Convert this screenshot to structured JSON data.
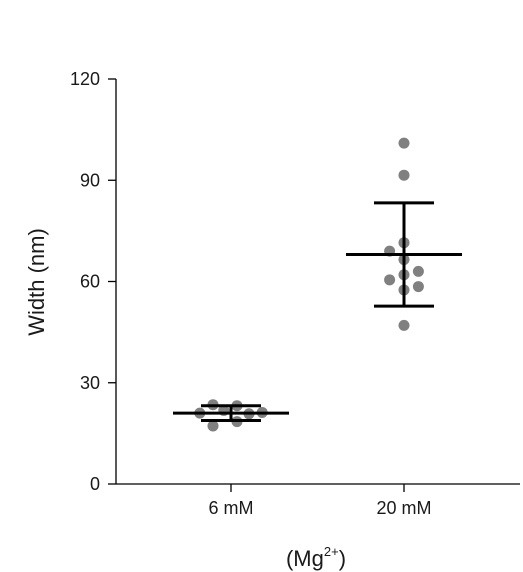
{
  "chart_data": {
    "type": "scatter",
    "ylabel": "Width (nm)",
    "xlabel_main": "(Mg",
    "xlabel_sup": "2+",
    "xlabel_end": ")",
    "ylim": [
      0,
      120
    ],
    "yticks": [
      0,
      30,
      60,
      90,
      120
    ],
    "categories": [
      "6 mM",
      "20 mM"
    ],
    "groups": [
      {
        "category": "6 mM",
        "mean": 21,
        "sd": 2.2,
        "points": [
          {
            "jitter": -0.52,
            "y": 21
          },
          {
            "jitter": -0.3,
            "y": 23.5
          },
          {
            "jitter": -0.3,
            "y": 17.2
          },
          {
            "jitter": -0.12,
            "y": 21.8
          },
          {
            "jitter": 0.1,
            "y": 23.2
          },
          {
            "jitter": 0.1,
            "y": 18.5
          },
          {
            "jitter": 0.3,
            "y": 20.8
          },
          {
            "jitter": 0.52,
            "y": 21.2
          }
        ]
      },
      {
        "category": "20 mM",
        "mean": 68,
        "sd": 15.3,
        "points": [
          {
            "jitter": 0.0,
            "y": 101
          },
          {
            "jitter": 0.0,
            "y": 91.5
          },
          {
            "jitter": -0.24,
            "y": 69
          },
          {
            "jitter": 0.0,
            "y": 71.5
          },
          {
            "jitter": 0.0,
            "y": 66.5
          },
          {
            "jitter": -0.24,
            "y": 60.5
          },
          {
            "jitter": 0.0,
            "y": 62
          },
          {
            "jitter": 0.24,
            "y": 63
          },
          {
            "jitter": 0.0,
            "y": 57.5
          },
          {
            "jitter": 0.24,
            "y": 58.5
          },
          {
            "jitter": 0.0,
            "y": 47
          }
        ]
      }
    ],
    "colors": {
      "points": "#808080",
      "error_bars": "#000000",
      "axes": "#000000"
    },
    "grid": false
  }
}
